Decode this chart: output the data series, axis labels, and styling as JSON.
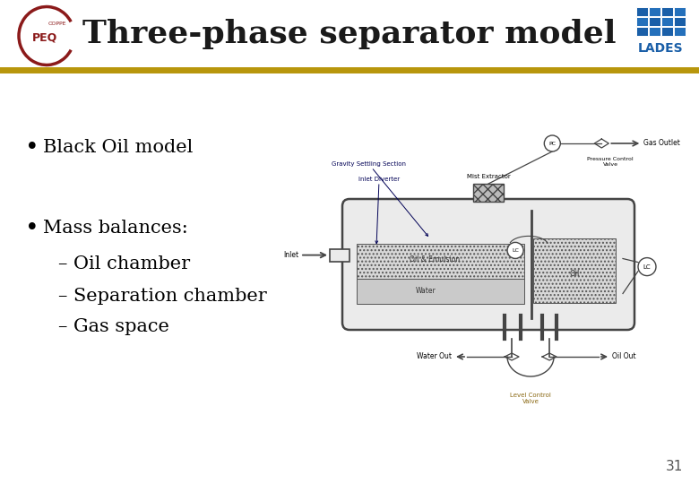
{
  "title": "Three-phase separator model",
  "title_fontsize": 26,
  "title_color": "#1a1a1a",
  "title_font": "serif",
  "bg_color": "#ffffff",
  "header_line_color": "#b8960c",
  "slide_number": "31",
  "bullet1": "Black Oil model",
  "bullet2": "Mass balances:",
  "sub_bullets": [
    "– Oil chamber",
    "– Separation chamber",
    "– Gas space"
  ],
  "bullet_fontsize": 15,
  "sub_bullet_fontsize": 15,
  "text_color": "#000000",
  "left_logo_color": "#8b1a1a",
  "right_logo_color": "#1a5fa8",
  "diagram_line_color": "#444444",
  "diagram_label_color": "#000055",
  "diagram_fill_light": "#ebebeb",
  "diagram_fill_mid": "#d4d4d4"
}
